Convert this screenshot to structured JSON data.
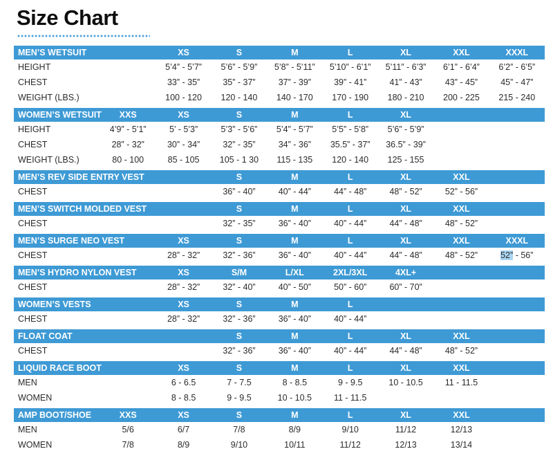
{
  "page": {
    "title": "Size Chart"
  },
  "colors": {
    "header_blue": "#3e9ad5",
    "highlight_blue": "#a9d5f1"
  },
  "tables": [
    {
      "title": "MEN’S WETSUIT",
      "sizes": [
        "",
        "XS",
        "S",
        "M",
        "L",
        "XL",
        "XXL",
        "XXXL"
      ],
      "rows": [
        {
          "label": "HEIGHT",
          "cells": [
            "",
            "5’4” - 5’7”",
            "5’6” - 5’9”",
            "5’8” - 5’11”",
            "5’10” - 6’1”",
            "5’11” - 6’3”",
            "6’1” - 6’4”",
            "6’2” - 6’5”"
          ]
        },
        {
          "label": "CHEST",
          "cells": [
            "",
            "33” - 35”",
            "35” - 37”",
            "37” - 39”",
            "39” - 41”",
            "41” - 43”",
            "43” - 45”",
            "45” - 47”"
          ]
        },
        {
          "label": "WEIGHT (LBS.)",
          "cells": [
            "",
            "100 - 120",
            "120 - 140",
            "140 - 170",
            "170 - 190",
            "180 - 210",
            "200 - 225",
            "215 - 240"
          ]
        }
      ]
    },
    {
      "title": "WOMEN’S WETSUIT",
      "sizes": [
        "XXS",
        "XS",
        "S",
        "M",
        "L",
        "XL",
        "",
        ""
      ],
      "rows": [
        {
          "label": "HEIGHT",
          "cells": [
            "4’9” - 5’1”",
            "5’ - 5’3”",
            "5’3” - 5’6”",
            "5’4” - 5’7”",
            "5’5” - 5’8”",
            "5’6” - 5’9”",
            "",
            ""
          ]
        },
        {
          "label": "CHEST",
          "cells": [
            "28” - 32”",
            "30” - 34”",
            "32” - 35”",
            "34” - 36”",
            "35.5” - 37”",
            "36.5” - 39”",
            "",
            ""
          ]
        },
        {
          "label": "WEIGHT (LBS.)",
          "cells": [
            "80 - 100",
            "85 - 105",
            "105 - 1 30",
            "115 - 135",
            "120 - 140",
            "125 - 155",
            "",
            ""
          ]
        }
      ]
    },
    {
      "title": "MEN’S REV SIDE ENTRY VEST",
      "sizes": [
        "",
        "",
        "S",
        "M",
        "L",
        "XL",
        "XXL",
        ""
      ],
      "rows": [
        {
          "label": "CHEST",
          "cells": [
            "",
            "",
            "36” - 40”",
            "40” - 44”",
            "44” - 48”",
            "48” - 52”",
            "52” - 56”",
            ""
          ]
        }
      ]
    },
    {
      "title": "MEN’S SWITCH MOLDED VEST",
      "sizes": [
        "",
        "",
        "S",
        "M",
        "L",
        "XL",
        "XXL",
        ""
      ],
      "rows": [
        {
          "label": "CHEST",
          "cells": [
            "",
            "",
            "32” - 35”",
            "36” - 40”",
            "40” - 44”",
            "44” - 48”",
            "48” - 52”",
            ""
          ]
        }
      ]
    },
    {
      "title": "MEN’S SURGE NEO VEST",
      "sizes": [
        "",
        "XS",
        "S",
        "M",
        "L",
        "XL",
        "XXL",
        "XXXL"
      ],
      "rows": [
        {
          "label": "CHEST",
          "cells": [
            "",
            "28” - 32”",
            "32” - 36”",
            "36” - 40”",
            "40” - 44”",
            "44” - 48”",
            "48” - 52”",
            {
              "hl": "52”",
              "rest": " - 56”"
            }
          ]
        }
      ]
    },
    {
      "title": "MEN’S HYDRO NYLON VEST",
      "sizes": [
        "",
        "XS",
        "S/M",
        "L/XL",
        "2XL/3XL",
        "4XL+",
        "",
        ""
      ],
      "rows": [
        {
          "label": "CHEST",
          "cells": [
            "",
            "28” - 32”",
            "32” - 40”",
            "40” - 50”",
            "50” - 60”",
            "60” - 70”",
            "",
            ""
          ]
        }
      ]
    },
    {
      "title": "WOMEN’S VESTS",
      "sizes": [
        "",
        "XS",
        "S",
        "M",
        "L",
        "",
        "",
        ""
      ],
      "rows": [
        {
          "label": "CHEST",
          "cells": [
            "",
            "28” - 32”",
            "32” - 36”",
            "36” - 40”",
            "40” - 44”",
            "",
            "",
            ""
          ]
        }
      ]
    },
    {
      "title": "FLOAT COAT",
      "sizes": [
        "",
        "",
        "S",
        "M",
        "L",
        "XL",
        "XXL",
        ""
      ],
      "rows": [
        {
          "label": "CHEST",
          "cells": [
            "",
            "",
            "32” - 36”",
            "36” - 40”",
            "40” - 44”",
            "44” - 48”",
            "48” - 52”",
            ""
          ]
        }
      ]
    },
    {
      "title": "LIQUID RACE BOOT",
      "sizes": [
        "",
        "XS",
        "S",
        "M",
        "L",
        "XL",
        "XXL",
        ""
      ],
      "rows": [
        {
          "label": "MEN",
          "cells": [
            "",
            "6 - 6.5",
            "7 - 7.5",
            "8 - 8.5",
            "9 - 9.5",
            "10 - 10.5",
            "11 - 11.5",
            ""
          ]
        },
        {
          "label": "WOMEN",
          "cells": [
            "",
            "8 - 8.5",
            "9 - 9.5",
            "10 - 10.5",
            "11 - 11.5",
            "",
            "",
            ""
          ]
        }
      ]
    },
    {
      "title": "AMP BOOT/SHOE",
      "sizes": [
        "XXS",
        "XS",
        "S",
        "M",
        "L",
        "XL",
        "XXL",
        ""
      ],
      "rows": [
        {
          "label": "MEN",
          "cells": [
            "5/6",
            "6/7",
            "7/8",
            "8/9",
            "9/10",
            "11/12",
            "12/13",
            ""
          ]
        },
        {
          "label": "WOMEN",
          "cells": [
            "7/8",
            "8/9",
            "9/10",
            "10/11",
            "11/12",
            "12/13",
            "13/14",
            ""
          ]
        }
      ]
    }
  ]
}
